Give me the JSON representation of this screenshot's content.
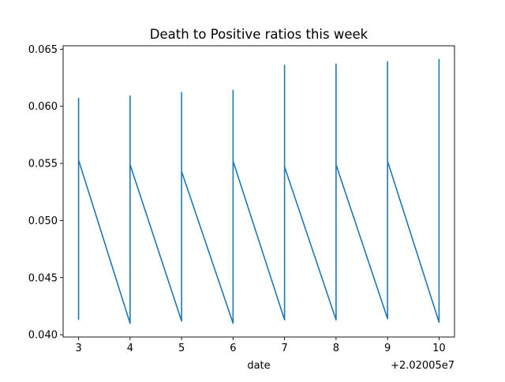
{
  "chart_data": {
    "type": "line",
    "title": "Death to Positive ratios this week",
    "xlabel": "date",
    "ylabel": "",
    "x_offset_label": "+2.02005e7",
    "xlim": [
      2.7,
      10.3
    ],
    "ylim": [
      0.0398,
      0.0653
    ],
    "x_ticks": [
      3,
      4,
      5,
      6,
      7,
      8,
      9,
      10
    ],
    "x_tick_labels": [
      "3",
      "4",
      "5",
      "6",
      "7",
      "8",
      "9",
      "10"
    ],
    "y_ticks": [
      0.04,
      0.045,
      0.05,
      0.055,
      0.06,
      0.065
    ],
    "y_tick_labels": [
      "0.040",
      "0.045",
      "0.050",
      "0.055",
      "0.060",
      "0.065"
    ],
    "series": [
      {
        "color": "#1f77b4",
        "points": [
          [
            3,
            0.0413
          ],
          [
            3,
            0.0607
          ],
          [
            3,
            0.0553
          ],
          [
            4,
            0.041
          ],
          [
            4,
            0.0609
          ],
          [
            4,
            0.0549
          ],
          [
            5,
            0.0412
          ],
          [
            5,
            0.0612
          ],
          [
            5,
            0.0543
          ],
          [
            6,
            0.041
          ],
          [
            6,
            0.0614
          ],
          [
            6,
            0.0552
          ],
          [
            7,
            0.0413
          ],
          [
            7,
            0.0636
          ],
          [
            7,
            0.0547
          ],
          [
            8,
            0.0413
          ],
          [
            8,
            0.0637
          ],
          [
            8,
            0.0549
          ],
          [
            9,
            0.0414
          ],
          [
            9,
            0.0639
          ],
          [
            9,
            0.0552
          ],
          [
            10,
            0.0411
          ],
          [
            10,
            0.0641
          ],
          [
            10,
            0.0551
          ]
        ]
      }
    ],
    "grid": false,
    "legend": null
  }
}
